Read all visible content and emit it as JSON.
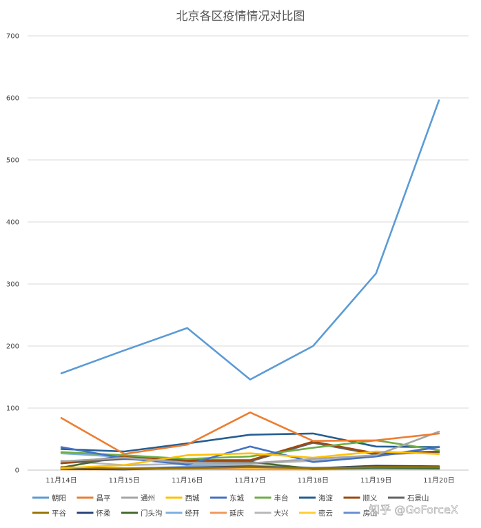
{
  "watermark": "知乎 @GoForceX",
  "chart_data": {
    "type": "line",
    "title": "北京各区疫情情况对比图",
    "xlabel": "",
    "ylabel": "",
    "categories": [
      "11月14日",
      "11月15日",
      "11月16日",
      "11月17日",
      "11月18日",
      "11月19日",
      "11月20日"
    ],
    "ylim": [
      0,
      700
    ],
    "yticks": [
      0,
      100,
      200,
      300,
      400,
      500,
      600,
      700
    ],
    "grid": true,
    "legend_position": "bottom",
    "series": [
      {
        "name": "朝阳",
        "color": "#5b9bd5",
        "values": [
          156,
          193,
          229,
          146,
          200,
          317,
          596
        ]
      },
      {
        "name": "昌平",
        "color": "#ed7d31",
        "values": [
          84,
          26,
          41,
          93,
          47,
          48,
          59
        ]
      },
      {
        "name": "通州",
        "color": "#a5a5a5",
        "values": [
          14,
          20,
          12,
          11,
          18,
          24,
          62
        ]
      },
      {
        "name": "西城",
        "color": "#ffc000",
        "values": [
          3,
          8,
          24,
          27,
          20,
          30,
          26
        ]
      },
      {
        "name": "东城",
        "color": "#4472c4",
        "values": [
          37,
          19,
          9,
          38,
          13,
          22,
          37
        ]
      },
      {
        "name": "丰台",
        "color": "#70ad47",
        "values": [
          29,
          24,
          18,
          22,
          36,
          48,
          32
        ]
      },
      {
        "name": "海淀",
        "color": "#255e91",
        "values": [
          34,
          30,
          43,
          57,
          59,
          38,
          37
        ]
      },
      {
        "name": "顺义",
        "color": "#9e480e",
        "values": [
          11,
          22,
          16,
          16,
          46,
          27,
          30
        ]
      },
      {
        "name": "石景山",
        "color": "#636363",
        "values": [
          11,
          18,
          14,
          14,
          44,
          25,
          29
        ]
      },
      {
        "name": "平谷",
        "color": "#997300",
        "values": [
          5,
          2,
          3,
          5,
          3,
          5,
          5
        ]
      },
      {
        "name": "怀柔",
        "color": "#264478",
        "values": [
          2,
          1,
          4,
          6,
          3,
          7,
          6
        ]
      },
      {
        "name": "门头沟",
        "color": "#43682b",
        "values": [
          4,
          22,
          16,
          13,
          2,
          4,
          3
        ]
      },
      {
        "name": "经开",
        "color": "#7cafdd",
        "values": [
          27,
          21,
          8,
          7,
          4,
          3,
          2
        ]
      },
      {
        "name": "延庆",
        "color": "#f1975a",
        "values": [
          1,
          1,
          2,
          1,
          1,
          2,
          2
        ]
      },
      {
        "name": "大兴",
        "color": "#b7b7b7",
        "values": [
          15,
          8,
          10,
          10,
          15,
          22,
          38
        ]
      },
      {
        "name": "密云",
        "color": "#ffcd33",
        "values": [
          1,
          2,
          3,
          2,
          1,
          2,
          2
        ]
      },
      {
        "name": "房山",
        "color": "#698ed0",
        "values": [
          2,
          3,
          5,
          4,
          2,
          3,
          3
        ]
      }
    ]
  }
}
